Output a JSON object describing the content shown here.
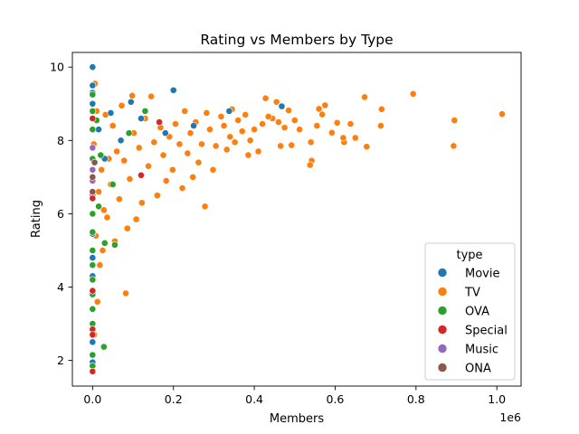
{
  "chart_data": {
    "type": "scatter",
    "title": "Rating vs Members by Type",
    "xlabel": "Members",
    "ylabel": "Rating",
    "x_scale_note": "1e6",
    "xlim": [
      -50000,
      1060000
    ],
    "ylim": [
      1.3,
      10.4
    ],
    "x_ticks": [
      0,
      200000,
      400000,
      600000,
      800000,
      1000000
    ],
    "x_tick_labels": [
      "0.0",
      "0.2",
      "0.4",
      "0.6",
      "0.8",
      "1.0"
    ],
    "y_ticks": [
      2,
      4,
      6,
      8,
      10
    ],
    "y_tick_labels": [
      "2",
      "4",
      "6",
      "8",
      "10"
    ],
    "grid": false,
    "legend": {
      "title": "type",
      "placement": "lower-right",
      "entries": [
        {
          "name": "Movie",
          "color": "#1f77b4"
        },
        {
          "name": "TV",
          "color": "#ff7f0e"
        },
        {
          "name": "OVA",
          "color": "#2ca02c"
        },
        {
          "name": "Special",
          "color": "#d62728"
        },
        {
          "name": "Music",
          "color": "#9467bd"
        },
        {
          "name": "ONA",
          "color": "#8c564b"
        }
      ]
    },
    "series": [
      {
        "name": "TV",
        "color": "#ff7f0e",
        "points": [
          [
            1013000,
            8.72
          ],
          [
            895000,
            8.55
          ],
          [
            893000,
            7.85
          ],
          [
            793000,
            9.27
          ],
          [
            715000,
            8.85
          ],
          [
            713000,
            8.4
          ],
          [
            673000,
            9.18
          ],
          [
            678000,
            7.83
          ],
          [
            650000,
            8.07
          ],
          [
            638000,
            8.45
          ],
          [
            622000,
            7.95
          ],
          [
            620000,
            8.07
          ],
          [
            605000,
            8.48
          ],
          [
            592000,
            8.21
          ],
          [
            575000,
            8.96
          ],
          [
            568000,
            8.71
          ],
          [
            560000,
            8.86
          ],
          [
            555000,
            8.4
          ],
          [
            542000,
            7.45
          ],
          [
            540000,
            7.95
          ],
          [
            538000,
            7.33
          ],
          [
            512000,
            8.3
          ],
          [
            500000,
            8.55
          ],
          [
            492000,
            7.87
          ],
          [
            485000,
            8.82
          ],
          [
            475000,
            8.35
          ],
          [
            465000,
            7.85
          ],
          [
            460000,
            8.5
          ],
          [
            455000,
            9.05
          ],
          [
            445000,
            8.6
          ],
          [
            435000,
            8.65
          ],
          [
            428000,
            9.15
          ],
          [
            420000,
            8.45
          ],
          [
            410000,
            7.7
          ],
          [
            400000,
            8.3
          ],
          [
            390000,
            8.0
          ],
          [
            385000,
            7.6
          ],
          [
            378000,
            8.7
          ],
          [
            370000,
            8.25
          ],
          [
            360000,
            8.55
          ],
          [
            352000,
            7.95
          ],
          [
            345000,
            8.85
          ],
          [
            340000,
            8.1
          ],
          [
            332000,
            7.75
          ],
          [
            325000,
            8.4
          ],
          [
            318000,
            8.65
          ],
          [
            305000,
            7.85
          ],
          [
            298000,
            7.2
          ],
          [
            290000,
            8.3
          ],
          [
            282000,
            8.75
          ],
          [
            278000,
            6.2
          ],
          [
            270000,
            7.9
          ],
          [
            262000,
            7.4
          ],
          [
            255000,
            8.5
          ],
          [
            248000,
            7.0
          ],
          [
            242000,
            8.2
          ],
          [
            235000,
            7.65
          ],
          [
            228000,
            8.8
          ],
          [
            222000,
            6.7
          ],
          [
            215000,
            7.9
          ],
          [
            205000,
            8.45
          ],
          [
            198000,
            7.2
          ],
          [
            190000,
            8.1
          ],
          [
            182000,
            6.9
          ],
          [
            175000,
            7.6
          ],
          [
            168000,
            8.35
          ],
          [
            160000,
            6.5
          ],
          [
            152000,
            7.95
          ],
          [
            145000,
            9.2
          ],
          [
            138000,
            7.3
          ],
          [
            130000,
            8.6
          ],
          [
            122000,
            6.3
          ],
          [
            115000,
            7.8
          ],
          [
            108000,
            5.85
          ],
          [
            102000,
            8.2
          ],
          [
            98000,
            9.22
          ],
          [
            92000,
            6.95
          ],
          [
            86000,
            5.6
          ],
          [
            82000,
            3.83
          ],
          [
            78000,
            7.45
          ],
          [
            72000,
            8.95
          ],
          [
            66000,
            6.4
          ],
          [
            60000,
            7.7
          ],
          [
            55000,
            5.25
          ],
          [
            50000,
            8.4
          ],
          [
            45000,
            6.8
          ],
          [
            40000,
            7.5
          ],
          [
            36000,
            5.9
          ],
          [
            32000,
            8.7
          ],
          [
            28000,
            6.1
          ],
          [
            25000,
            5.0
          ],
          [
            22000,
            7.2
          ],
          [
            18000,
            4.6
          ],
          [
            15000,
            6.6
          ],
          [
            12000,
            3.6
          ],
          [
            10000,
            8.8
          ],
          [
            8000,
            5.4
          ],
          [
            6000,
            9.55
          ],
          [
            4000,
            2.7
          ],
          [
            3000,
            7.9
          ],
          [
            2000,
            4.2
          ],
          [
            1000,
            6.0
          ]
        ]
      },
      {
        "name": "Movie",
        "color": "#1f77b4",
        "points": [
          [
            0,
            10.0
          ],
          [
            0,
            9.5
          ],
          [
            0,
            9.3
          ],
          [
            0,
            9.0
          ],
          [
            0,
            5.45
          ],
          [
            0,
            4.8
          ],
          [
            0,
            4.3
          ],
          [
            0,
            2.5
          ],
          [
            0,
            1.95
          ],
          [
            200000,
            9.37
          ],
          [
            468000,
            8.93
          ],
          [
            338000,
            8.8
          ],
          [
            250000,
            8.4
          ],
          [
            180000,
            8.2
          ],
          [
            120000,
            8.6
          ],
          [
            95000,
            9.05
          ],
          [
            70000,
            8.0
          ],
          [
            45000,
            8.75
          ],
          [
            30000,
            7.5
          ],
          [
            15000,
            8.3
          ]
        ]
      },
      {
        "name": "OVA",
        "color": "#2ca02c",
        "points": [
          [
            0,
            9.25
          ],
          [
            0,
            8.8
          ],
          [
            0,
            8.3
          ],
          [
            0,
            7.5
          ],
          [
            0,
            7.0
          ],
          [
            0,
            6.5
          ],
          [
            0,
            6.0
          ],
          [
            0,
            5.5
          ],
          [
            0,
            5.0
          ],
          [
            0,
            4.6
          ],
          [
            0,
            4.2
          ],
          [
            0,
            3.8
          ],
          [
            0,
            3.4
          ],
          [
            0,
            3.0
          ],
          [
            0,
            2.7
          ],
          [
            0,
            2.15
          ],
          [
            0,
            1.85
          ],
          [
            28000,
            2.37
          ],
          [
            55000,
            5.15
          ],
          [
            30000,
            5.2
          ],
          [
            20000,
            7.6
          ],
          [
            130000,
            8.8
          ],
          [
            90000,
            8.2
          ],
          [
            50000,
            6.8
          ],
          [
            10000,
            8.55
          ],
          [
            15000,
            6.2
          ]
        ]
      },
      {
        "name": "Special",
        "color": "#d62728",
        "points": [
          [
            0,
            6.42
          ],
          [
            0,
            2.85
          ],
          [
            0,
            2.7
          ],
          [
            0,
            1.7
          ],
          [
            0,
            3.9
          ],
          [
            0,
            8.6
          ],
          [
            120000,
            7.05
          ],
          [
            165000,
            8.5
          ]
        ]
      },
      {
        "name": "Music",
        "color": "#9467bd",
        "points": [
          [
            0,
            7.2
          ],
          [
            0,
            6.9
          ],
          [
            0,
            7.8
          ]
        ]
      },
      {
        "name": "ONA",
        "color": "#8c564b",
        "points": [
          [
            0,
            7.0
          ],
          [
            0,
            6.6
          ],
          [
            5000,
            7.4
          ]
        ]
      }
    ]
  }
}
